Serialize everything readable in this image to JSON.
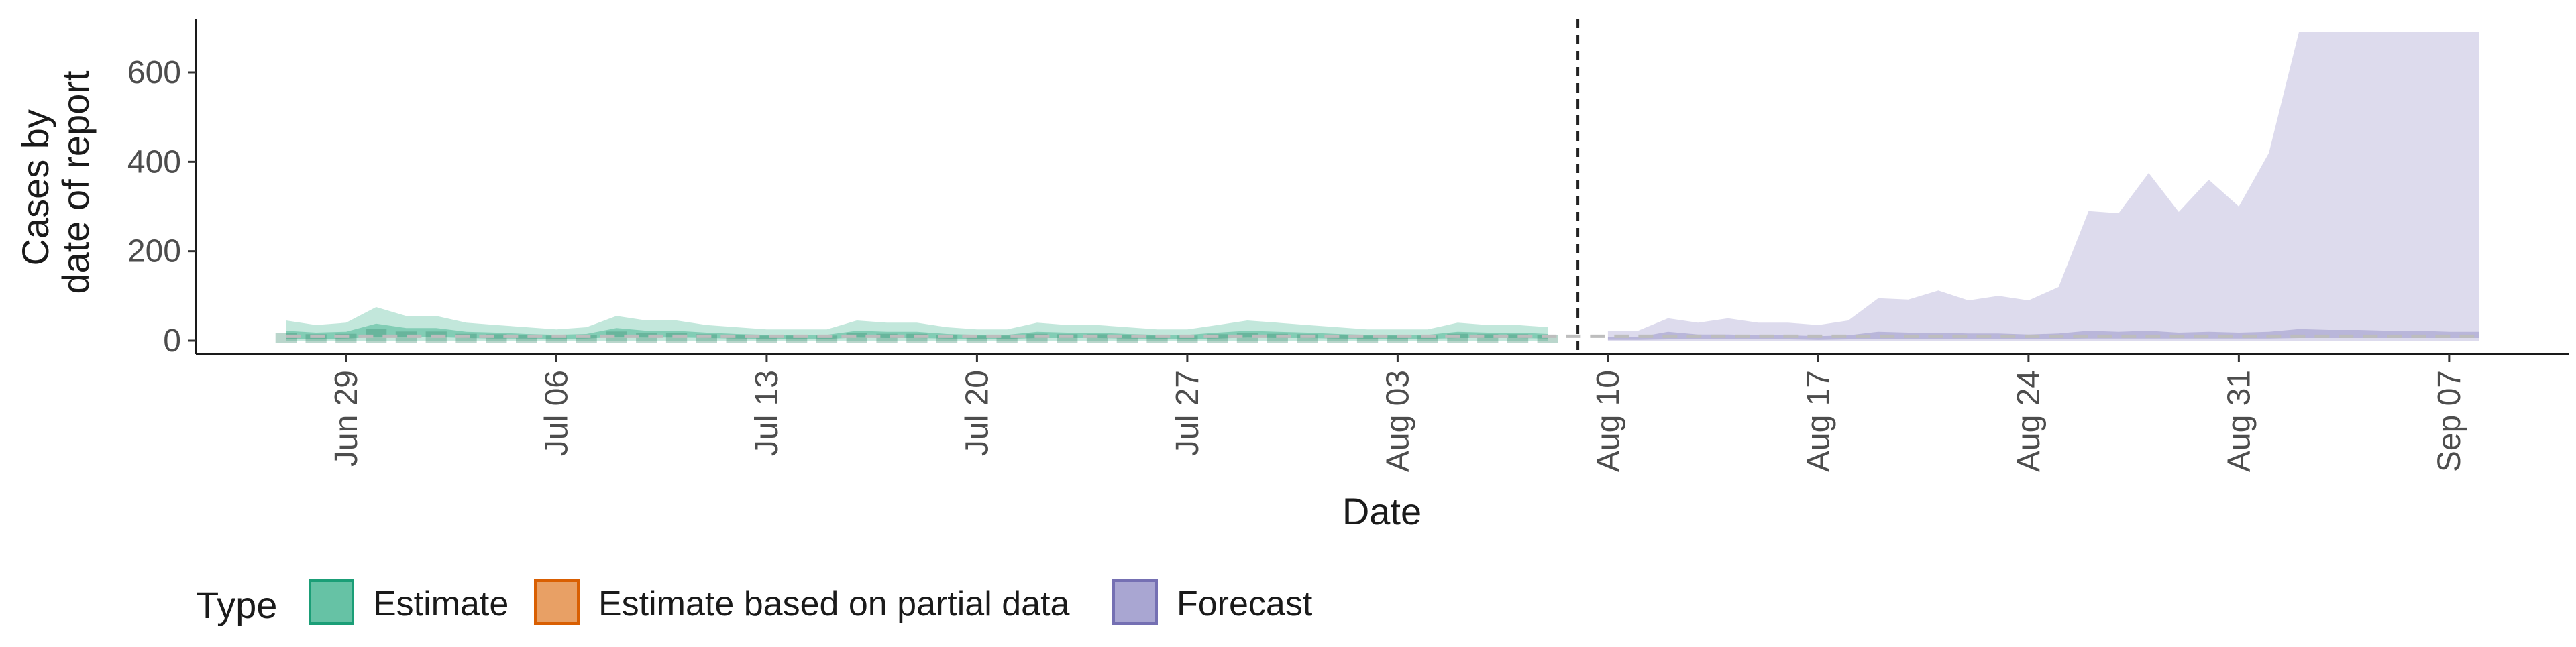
{
  "chart_data": {
    "type": "area",
    "title": "",
    "xlabel": "Date",
    "ylabel_lines": [
      "Cases by",
      "date of report"
    ],
    "x_axis": {
      "kind": "date",
      "range": [
        "2020-06-24",
        "2020-09-11"
      ],
      "tick_dates": [
        "2020-06-29",
        "2020-07-06",
        "2020-07-13",
        "2020-07-20",
        "2020-07-27",
        "2020-08-03",
        "2020-08-10",
        "2020-08-17",
        "2020-08-24",
        "2020-08-31",
        "2020-09-07"
      ],
      "tick_labels": [
        "Jun 29",
        "Jul 06",
        "Jul 13",
        "Jul 20",
        "Jul 27",
        "Aug 03",
        "Aug 10",
        "Aug 17",
        "Aug 24",
        "Aug 31",
        "Sep 07"
      ]
    },
    "y_axis": {
      "range": [
        -30,
        720
      ],
      "ticks": [
        0,
        200,
        400,
        600
      ],
      "tick_labels": [
        "0",
        "200",
        "400",
        "600"
      ]
    },
    "grid": false,
    "legend": {
      "title": "Type",
      "placement": "bottom-left",
      "entries": [
        {
          "label": "Estimate",
          "fill": "#66c2a5",
          "stroke": "#1b9e77"
        },
        {
          "label": "Estimate based on partial data",
          "fill": "#e8a065",
          "stroke": "#d95f02"
        },
        {
          "label": "Forecast",
          "fill": "#a9a6d2",
          "stroke": "#7570b3"
        }
      ]
    },
    "forecast_start_line": "2020-08-09",
    "reported_cases_line": {
      "start": "2020-06-27",
      "end": "2020-09-08",
      "value": 10,
      "color": "#bdbdbd",
      "style": "dashed"
    },
    "series": [
      {
        "name": "Estimate",
        "color": "#66c2a5",
        "dates": [
          "2020-06-27",
          "2020-06-28",
          "2020-06-29",
          "2020-06-30",
          "2020-07-01",
          "2020-07-02",
          "2020-07-03",
          "2020-07-04",
          "2020-07-05",
          "2020-07-06",
          "2020-07-07",
          "2020-07-08",
          "2020-07-09",
          "2020-07-10",
          "2020-07-11",
          "2020-07-12",
          "2020-07-13",
          "2020-07-14",
          "2020-07-15",
          "2020-07-16",
          "2020-07-17",
          "2020-07-18",
          "2020-07-19",
          "2020-07-20",
          "2020-07-21",
          "2020-07-22",
          "2020-07-23",
          "2020-07-24",
          "2020-07-25",
          "2020-07-26",
          "2020-07-27",
          "2020-07-28",
          "2020-07-29",
          "2020-07-30",
          "2020-07-31",
          "2020-08-01",
          "2020-08-02",
          "2020-08-03",
          "2020-08-04",
          "2020-08-05",
          "2020-08-06",
          "2020-08-07",
          "2020-08-08"
        ],
        "outer_lower": [
          0,
          0,
          0,
          0,
          0,
          0,
          0,
          0,
          0,
          0,
          0,
          0,
          0,
          0,
          0,
          0,
          0,
          0,
          0,
          0,
          0,
          0,
          0,
          0,
          0,
          0,
          0,
          0,
          0,
          0,
          0,
          0,
          0,
          0,
          0,
          0,
          0,
          0,
          0,
          0,
          0,
          0,
          0
        ],
        "outer_upper": [
          45,
          35,
          40,
          75,
          55,
          55,
          40,
          35,
          30,
          25,
          30,
          55,
          45,
          45,
          35,
          30,
          25,
          25,
          25,
          45,
          40,
          40,
          30,
          25,
          25,
          40,
          35,
          35,
          30,
          25,
          25,
          35,
          45,
          40,
          35,
          30,
          25,
          25,
          25,
          40,
          35,
          35,
          30
        ],
        "inner_lower": [
          3,
          3,
          5,
          8,
          8,
          8,
          6,
          5,
          5,
          4,
          5,
          8,
          7,
          7,
          6,
          5,
          4,
          4,
          4,
          7,
          6,
          6,
          5,
          4,
          4,
          6,
          6,
          6,
          5,
          4,
          4,
          5,
          7,
          6,
          6,
          5,
          4,
          4,
          4,
          6,
          6,
          6,
          5
        ],
        "inner_upper": [
          22,
          18,
          20,
          38,
          28,
          28,
          20,
          18,
          15,
          13,
          15,
          28,
          22,
          22,
          18,
          15,
          13,
          13,
          13,
          22,
          20,
          20,
          15,
          13,
          13,
          20,
          18,
          18,
          15,
          13,
          13,
          18,
          22,
          20,
          18,
          15,
          13,
          13,
          13,
          20,
          18,
          18,
          15
        ],
        "median": [
          12,
          10,
          11,
          22,
          16,
          16,
          11,
          10,
          8,
          7,
          8,
          16,
          12,
          12,
          10,
          8,
          7,
          7,
          7,
          12,
          11,
          11,
          8,
          7,
          7,
          11,
          10,
          10,
          8,
          7,
          7,
          10,
          12,
          11,
          10,
          8,
          7,
          7,
          7,
          11,
          10,
          10,
          8
        ]
      },
      {
        "name": "Forecast",
        "color": "#a9a6d2",
        "dates": [
          "2020-08-10",
          "2020-08-11",
          "2020-08-12",
          "2020-08-13",
          "2020-08-14",
          "2020-08-15",
          "2020-08-16",
          "2020-08-17",
          "2020-08-18",
          "2020-08-19",
          "2020-08-20",
          "2020-08-21",
          "2020-08-22",
          "2020-08-23",
          "2020-08-24",
          "2020-08-25",
          "2020-08-26",
          "2020-08-27",
          "2020-08-28",
          "2020-08-29",
          "2020-08-30",
          "2020-08-31",
          "2020-09-01",
          "2020-09-02",
          "2020-09-03",
          "2020-09-04",
          "2020-09-05",
          "2020-09-06",
          "2020-09-07",
          "2020-09-08"
        ],
        "outer_lower": [
          0,
          0,
          0,
          0,
          0,
          0,
          0,
          0,
          0,
          0,
          0,
          0,
          0,
          0,
          0,
          0,
          0,
          0,
          0,
          0,
          0,
          0,
          0,
          0,
          0,
          0,
          0,
          0,
          0,
          0
        ],
        "outer_upper": [
          22,
          22,
          50,
          40,
          50,
          40,
          40,
          35,
          45,
          95,
          92,
          112,
          90,
          100,
          90,
          120,
          290,
          285,
          375,
          288,
          360,
          300,
          420,
          690,
          690,
          690,
          690,
          690,
          690,
          690
        ],
        "inner_lower": [
          2,
          2,
          3,
          3,
          3,
          3,
          3,
          2,
          3,
          4,
          4,
          4,
          4,
          4,
          3,
          4,
          5,
          5,
          5,
          5,
          5,
          5,
          5,
          6,
          6,
          6,
          6,
          6,
          6,
          6
        ],
        "inner_upper": [
          8,
          8,
          20,
          14,
          14,
          12,
          12,
          10,
          12,
          20,
          18,
          18,
          16,
          16,
          14,
          16,
          22,
          20,
          22,
          18,
          20,
          18,
          20,
          26,
          24,
          24,
          22,
          22,
          20,
          20
        ],
        "median": [
          4,
          4,
          10,
          8,
          8,
          7,
          7,
          6,
          7,
          10,
          9,
          9,
          8,
          8,
          7,
          8,
          11,
          10,
          11,
          9,
          10,
          9,
          10,
          13,
          12,
          12,
          11,
          11,
          10,
          10
        ]
      }
    ]
  }
}
